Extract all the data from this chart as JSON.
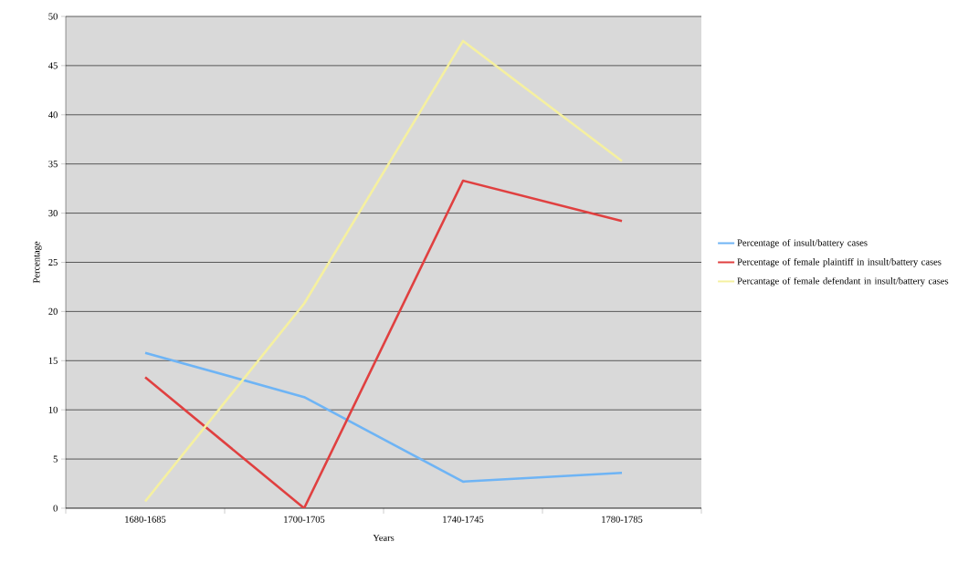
{
  "chart_data": {
    "type": "line",
    "xlabel": "Years",
    "ylabel": "Percentage",
    "categories": [
      "1680-1685",
      "1700-1705",
      "1740-1745",
      "1780-1785"
    ],
    "series": [
      {
        "name": "Percentage of insult/battery cases",
        "color": "#6eb4f5",
        "values": [
          15.8,
          11.3,
          2.7,
          3.6
        ]
      },
      {
        "name": "Percentage of female plaintiff in insult/battery cases",
        "color": "#e04040",
        "values": [
          13.3,
          0,
          33.3,
          29.2
        ]
      },
      {
        "name": "Percantage of female defendant in insult/battery cases",
        "color": "#f5f0a0",
        "values": [
          0.7,
          20.8,
          47.5,
          35.3
        ]
      }
    ],
    "ylim": [
      0,
      50
    ],
    "yticks": [
      0,
      5,
      10,
      15,
      20,
      25,
      30,
      35,
      40,
      45,
      50
    ],
    "grid": "y",
    "legend": "right",
    "marker": "none",
    "line_style": "solid"
  }
}
